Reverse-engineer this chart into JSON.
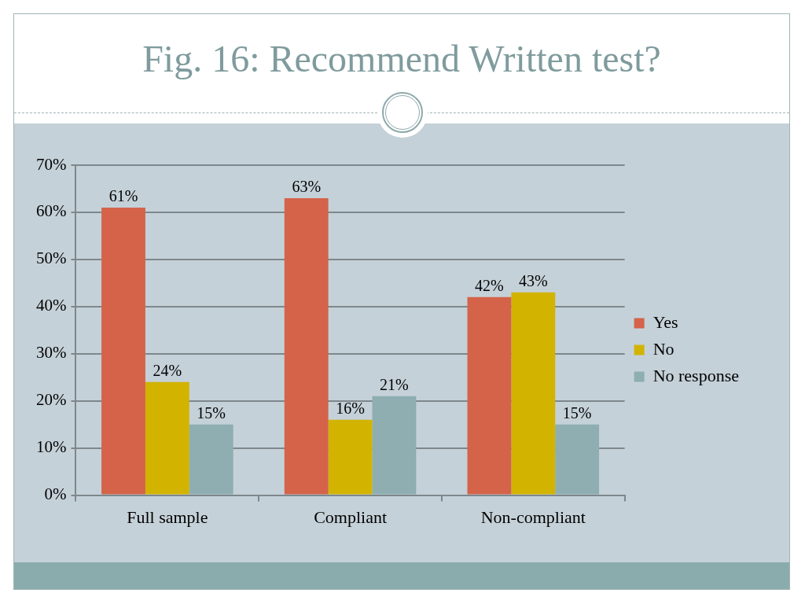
{
  "chart_data": {
    "type": "bar",
    "title": "Fig. 16: Recommend Written test?",
    "categories": [
      "Full sample",
      "Compliant",
      "Non-compliant"
    ],
    "series": [
      {
        "name": "Yes",
        "color": "#d4634a",
        "values": [
          61,
          63,
          42
        ],
        "value_labels": [
          "61%",
          "63%",
          "42%"
        ]
      },
      {
        "name": "No",
        "color": "#d2b300",
        "values": [
          24,
          16,
          43
        ],
        "value_labels": [
          "24%",
          "16%",
          "43%"
        ]
      },
      {
        "name": "No response",
        "color": "#8eaeb1",
        "values": [
          15,
          21,
          15
        ],
        "value_labels": [
          "15%",
          "21%",
          "15%"
        ]
      }
    ],
    "ylim": [
      0,
      70
    ],
    "yticks": [
      {
        "value": 0,
        "label": "0%"
      },
      {
        "value": 10,
        "label": "10%"
      },
      {
        "value": 20,
        "label": "20%"
      },
      {
        "value": 30,
        "label": "30%"
      },
      {
        "value": 40,
        "label": "40%"
      },
      {
        "value": 50,
        "label": "50%"
      },
      {
        "value": 60,
        "label": "60%"
      },
      {
        "value": 70,
        "label": "70%"
      }
    ],
    "grid": "y",
    "legend": "right"
  }
}
